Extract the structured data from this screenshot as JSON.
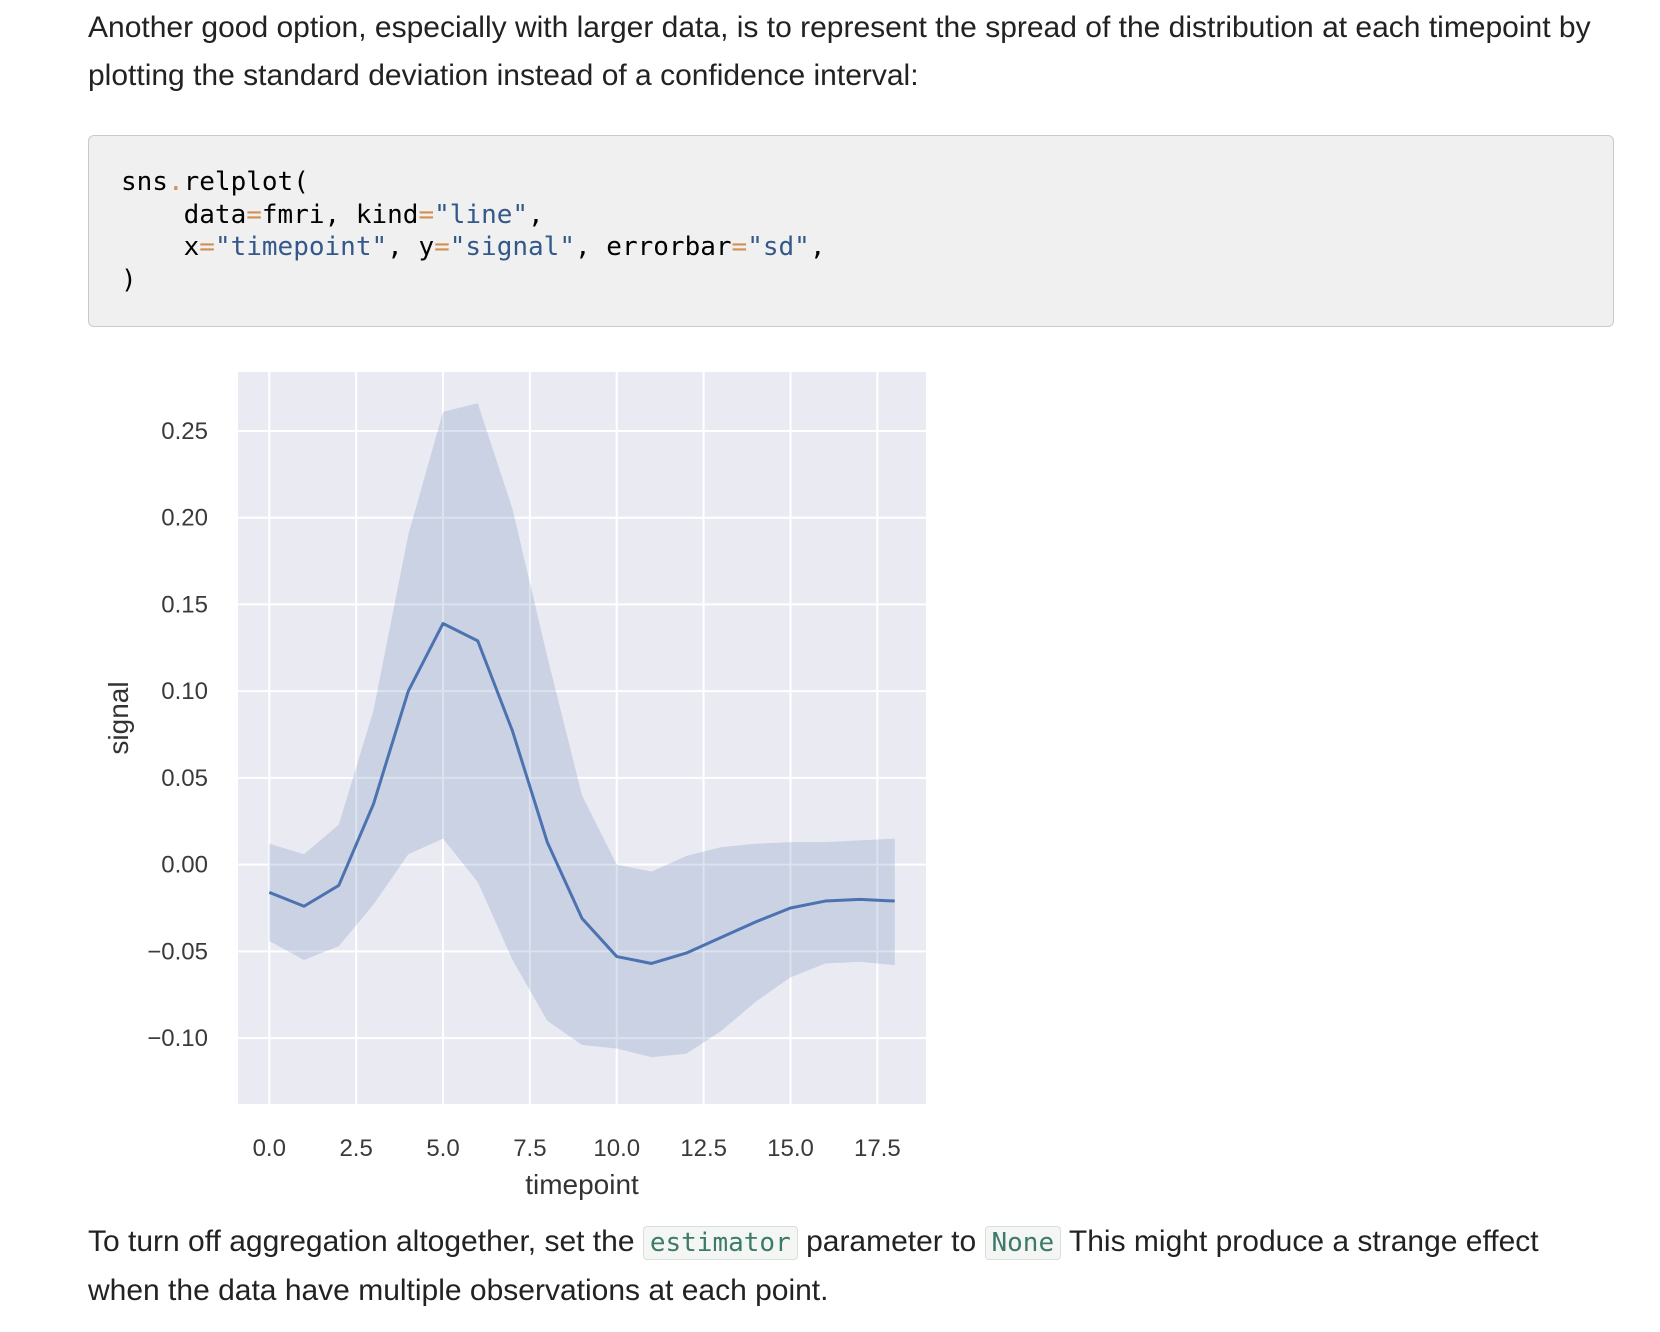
{
  "intro_text": "Another good option, especially with larger data, is to represent the spread of the distribution at each timepoint by plotting the standard deviation instead of a confidence interval:",
  "code": {
    "line1_obj": "sns",
    "line1_dot": ".",
    "line1_fn": "relplot(",
    "line2_k1": "data",
    "line2_eq1": "=",
    "line2_v1": "fmri, ",
    "line2_k2": "kind",
    "line2_eq2": "=",
    "line2_v2": "\"line\"",
    "line2_comma": ",",
    "line3_k1": "x",
    "line3_eq1": "=",
    "line3_v1": "\"timepoint\"",
    "line3_sep1": ", ",
    "line3_k2": "y",
    "line3_eq2": "=",
    "line3_v2": "\"signal\"",
    "line3_sep2": ", ",
    "line3_k3": "errorbar",
    "line3_eq3": "=",
    "line3_v3": "\"sd\"",
    "line3_comma": ",",
    "line4": ")"
  },
  "outro": {
    "part1": "To turn off aggregation altogether, set the ",
    "code1": "estimator",
    "part2": " parameter to ",
    "code2": "None",
    "part3": " This might produce a strange effect when the data have multiple observations at each point."
  },
  "colors": {
    "plot_bg": "#eaeaf2",
    "grid": "#ffffff",
    "line": "#4c72b0",
    "band": "#4c72b0"
  },
  "chart_data": {
    "type": "line",
    "xlabel": "timepoint",
    "ylabel": "signal",
    "xlim": [
      -0.9,
      18.9
    ],
    "ylim": [
      -0.138,
      0.284
    ],
    "xticks": [
      0,
      2.5,
      5,
      7.5,
      10,
      12.5,
      15,
      17.5
    ],
    "xtick_labels": [
      "0.0",
      "2.5",
      "5.0",
      "7.5",
      "10.0",
      "12.5",
      "15.0",
      "17.5"
    ],
    "yticks": [
      -0.1,
      -0.05,
      0,
      0.05,
      0.1,
      0.15,
      0.2,
      0.25
    ],
    "ytick_labels": [
      "−0.10",
      "−0.05",
      "0.00",
      "0.05",
      "0.10",
      "0.15",
      "0.20",
      "0.25"
    ],
    "grid": true,
    "x": [
      0,
      1,
      2,
      3,
      4,
      5,
      6,
      7,
      8,
      9,
      10,
      11,
      12,
      13,
      14,
      15,
      16,
      17,
      18
    ],
    "series": [
      {
        "values": [
          -0.016,
          -0.024,
          -0.012,
          0.035,
          0.1,
          0.139,
          0.129,
          0.077,
          0.013,
          -0.031,
          -0.053,
          -0.057,
          -0.051,
          -0.042,
          -0.033,
          -0.025,
          -0.021,
          -0.02,
          -0.021
        ],
        "lower": [
          -0.044,
          -0.055,
          -0.047,
          -0.023,
          0.006,
          0.015,
          -0.01,
          -0.055,
          -0.09,
          -0.104,
          -0.106,
          -0.111,
          -0.109,
          -0.096,
          -0.079,
          -0.065,
          -0.057,
          -0.056,
          -0.058
        ],
        "upper": [
          0.012,
          0.006,
          0.023,
          0.089,
          0.19,
          0.261,
          0.266,
          0.205,
          0.12,
          0.04,
          0.0,
          -0.004,
          0.005,
          0.01,
          0.012,
          0.013,
          0.013,
          0.014,
          0.015
        ]
      }
    ]
  }
}
